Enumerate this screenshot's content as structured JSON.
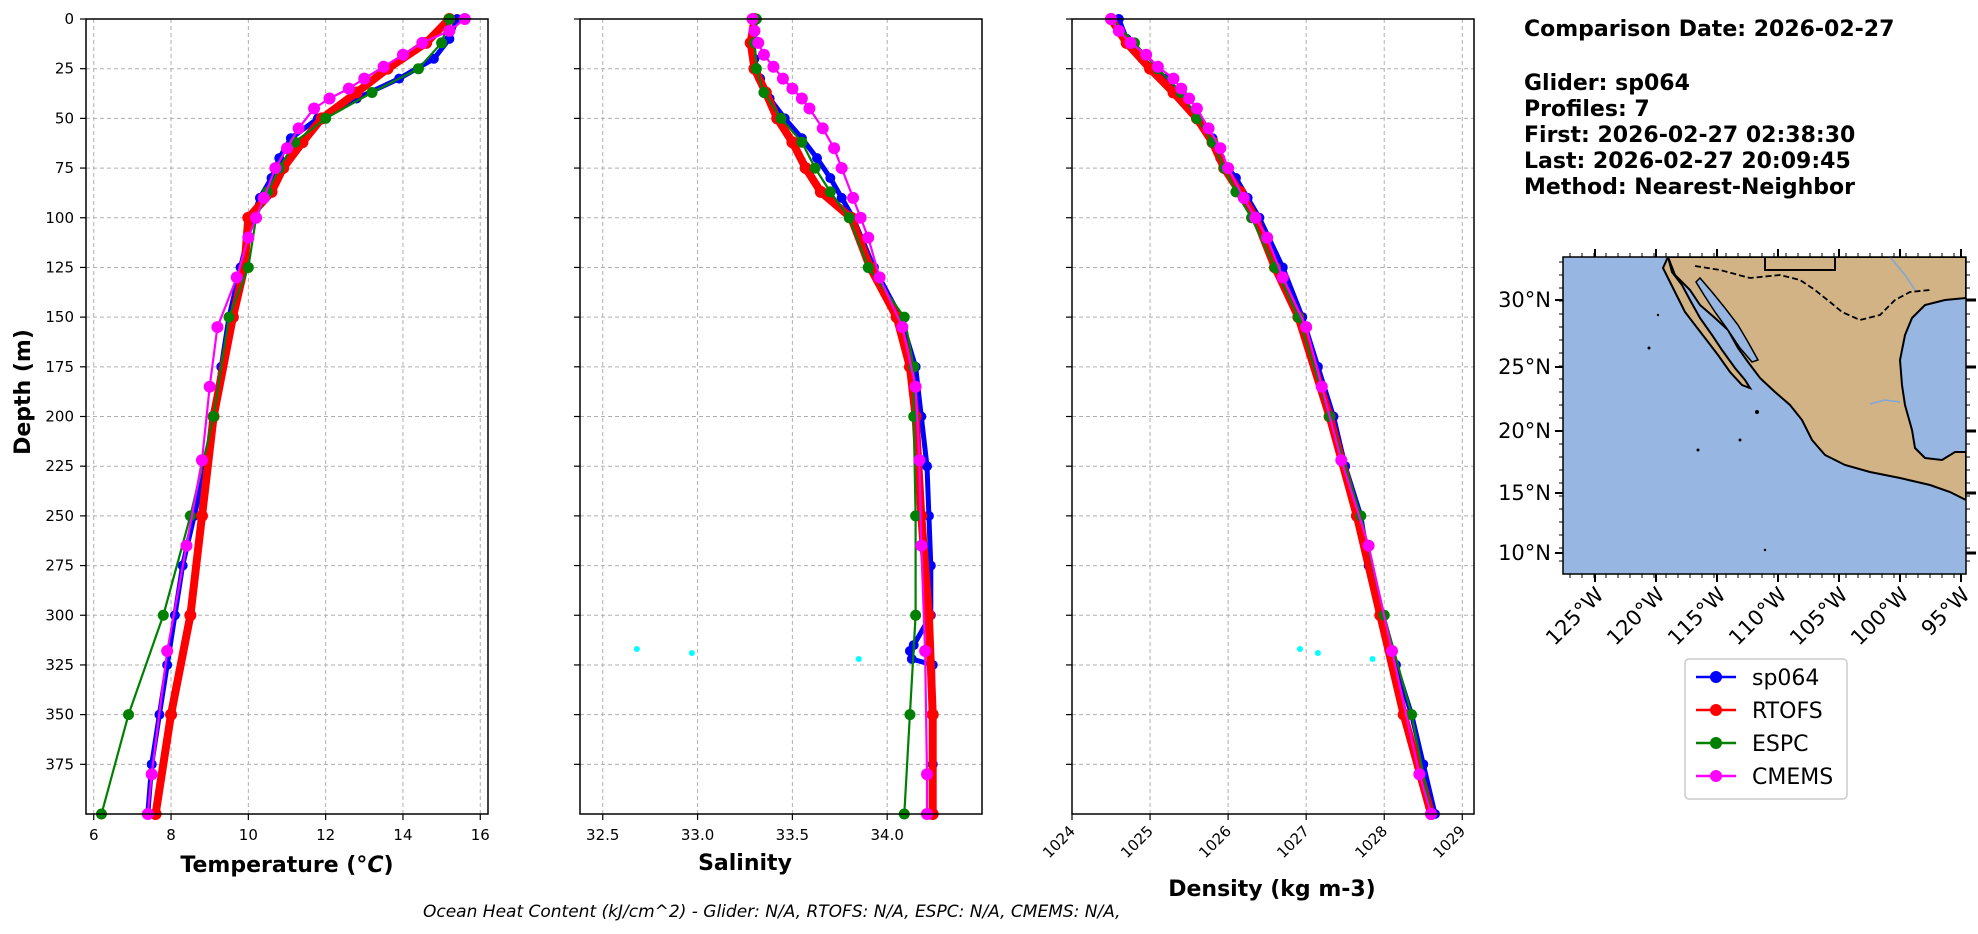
{
  "info": {
    "comparison_date": "Comparison Date: 2026-02-27",
    "glider": "Glider: sp064",
    "profiles": "Profiles: 7",
    "first": "First: 2026-02-27 02:38:30",
    "last": "Last: 2026-02-27 20:09:45",
    "method": "Method: Nearest-Neighbor"
  },
  "footer": "Ocean Heat Content (kJ/cm^2) - Glider: N/A,  RTOFS: N/A,  ESPC: N/A,  CMEMS: N/A,",
  "colors": {
    "sp064": "#0000ff",
    "glider_raw": "#00ffff",
    "RTOFS": "#ff0000",
    "ESPC": "#008000",
    "CMEMS": "#ff00ff",
    "ocean": "#97b6e1",
    "land": "#d1b386"
  },
  "legend": [
    "sp064",
    "RTOFS",
    "ESPC",
    "CMEMS"
  ],
  "map": {
    "lat_labels": [
      "30°N",
      "25°N",
      "20°N",
      "15°N",
      "10°N"
    ],
    "lon_labels": [
      "125°W",
      "120°W",
      "115°W",
      "110°W",
      "105°W",
      "100°W",
      "95°W"
    ]
  },
  "chart_data": [
    {
      "type": "line",
      "xlabel": "Temperature (°C)",
      "ylabel": "Depth (m)",
      "xlim": [
        5.8,
        16.2
      ],
      "ylim": [
        400,
        0
      ],
      "xticks": [
        6,
        8,
        10,
        12,
        14,
        16
      ],
      "yticks": [
        0,
        25,
        50,
        75,
        100,
        125,
        150,
        175,
        200,
        225,
        250,
        275,
        300,
        325,
        350,
        375
      ],
      "grid": true,
      "series": [
        {
          "name": "sp064",
          "depth": [
            0,
            10,
            20,
            30,
            40,
            50,
            60,
            70,
            80,
            90,
            100,
            125,
            150,
            175,
            200,
            225,
            250,
            275,
            300,
            325,
            350,
            375,
            400
          ],
          "values": [
            15.4,
            15.2,
            14.8,
            13.9,
            12.8,
            11.8,
            11.1,
            10.8,
            10.6,
            10.3,
            10.1,
            9.8,
            9.5,
            9.3,
            9.1,
            8.9,
            8.6,
            8.3,
            8.1,
            7.9,
            7.7,
            7.5,
            7.4
          ]
        },
        {
          "name": "RTOFS",
          "depth": [
            0,
            12,
            25,
            37,
            50,
            62,
            75,
            87,
            100,
            125,
            150,
            200,
            250,
            300,
            350,
            400
          ],
          "values": [
            15.2,
            14.6,
            13.6,
            12.8,
            11.9,
            11.4,
            10.9,
            10.6,
            10.0,
            9.9,
            9.6,
            9.1,
            8.8,
            8.5,
            8.0,
            7.6
          ]
        },
        {
          "name": "ESPC",
          "depth": [
            0,
            12,
            25,
            37,
            50,
            62,
            75,
            87,
            100,
            125,
            150,
            200,
            250,
            300,
            350,
            400
          ],
          "values": [
            15.2,
            15.0,
            14.4,
            13.2,
            12.0,
            11.2,
            10.8,
            10.5,
            10.2,
            10.0,
            9.5,
            9.1,
            8.5,
            7.8,
            6.9,
            6.2
          ]
        },
        {
          "name": "CMEMS",
          "depth": [
            0,
            6,
            12,
            18,
            24,
            30,
            35,
            40,
            45,
            55,
            65,
            75,
            90,
            100,
            110,
            130,
            155,
            185,
            222,
            265,
            318,
            380,
            400
          ],
          "values": [
            15.6,
            15.2,
            14.5,
            14.0,
            13.5,
            13.0,
            12.6,
            12.1,
            11.7,
            11.3,
            11.0,
            10.7,
            10.4,
            10.2,
            10.0,
            9.7,
            9.2,
            9.0,
            8.8,
            8.4,
            7.9,
            7.5,
            7.4
          ]
        }
      ]
    },
    {
      "type": "line",
      "xlabel": "Salinity",
      "xlim": [
        32.38,
        34.5
      ],
      "ylim": [
        400,
        0
      ],
      "xticks": [
        "32.5",
        "33.0",
        "33.5",
        "34.0"
      ],
      "grid": true,
      "series": [
        {
          "name": "sp064",
          "depth": [
            0,
            10,
            20,
            30,
            40,
            50,
            60,
            70,
            80,
            90,
            100,
            125,
            150,
            175,
            200,
            225,
            250,
            275,
            300,
            315,
            318,
            322,
            325,
            350,
            375,
            400
          ],
          "values": [
            33.3,
            33.29,
            33.3,
            33.33,
            33.38,
            33.46,
            33.55,
            33.63,
            33.7,
            33.76,
            33.82,
            33.93,
            34.07,
            34.15,
            34.18,
            34.21,
            34.22,
            34.23,
            34.23,
            34.14,
            34.12,
            34.13,
            34.24,
            34.24,
            34.24,
            34.24
          ]
        },
        {
          "name": "RTOFS",
          "depth": [
            0,
            12,
            25,
            37,
            50,
            62,
            75,
            87,
            100,
            125,
            150,
            175,
            200,
            250,
            300,
            350,
            400
          ],
          "values": [
            33.3,
            33.28,
            33.3,
            33.36,
            33.42,
            33.5,
            33.57,
            33.65,
            33.81,
            33.91,
            34.05,
            34.12,
            34.15,
            34.18,
            34.22,
            34.24,
            34.24
          ]
        },
        {
          "name": "ESPC",
          "depth": [
            0,
            12,
            25,
            37,
            50,
            62,
            75,
            87,
            100,
            125,
            150,
            175,
            200,
            250,
            300,
            350,
            400
          ],
          "values": [
            33.31,
            33.3,
            33.31,
            33.35,
            33.44,
            33.55,
            33.62,
            33.7,
            33.8,
            33.9,
            34.09,
            34.14,
            34.14,
            34.15,
            34.15,
            34.12,
            34.09
          ]
        },
        {
          "name": "CMEMS",
          "depth": [
            0,
            6,
            12,
            18,
            24,
            30,
            35,
            40,
            45,
            55,
            65,
            75,
            90,
            100,
            110,
            130,
            155,
            185,
            222,
            265,
            318,
            380,
            400
          ],
          "values": [
            33.29,
            33.3,
            33.32,
            33.35,
            33.4,
            33.45,
            33.5,
            33.55,
            33.59,
            33.66,
            33.72,
            33.76,
            33.82,
            33.86,
            33.9,
            33.96,
            34.08,
            34.15,
            34.17,
            34.18,
            34.2,
            34.21,
            34.21
          ]
        },
        {
          "name": "glider_raw",
          "depth": [
            317,
            319,
            322
          ],
          "values": [
            32.68,
            32.97,
            33.85
          ]
        }
      ]
    },
    {
      "type": "line",
      "xlabel": "Density (kg m-3)",
      "xlim": [
        1024,
        1029.15
      ],
      "ylim": [
        400,
        0
      ],
      "xticks": [
        "1024",
        "1025",
        "1026",
        "1027",
        "1028",
        "1029"
      ],
      "grid": true,
      "series": [
        {
          "name": "sp064",
          "depth": [
            0,
            10,
            20,
            30,
            40,
            50,
            60,
            70,
            80,
            90,
            100,
            125,
            150,
            175,
            200,
            225,
            250,
            275,
            300,
            325,
            350,
            375,
            400
          ],
          "values": [
            1024.6,
            1024.7,
            1024.9,
            1025.2,
            1025.4,
            1025.6,
            1025.8,
            1025.9,
            1026.1,
            1026.25,
            1026.4,
            1026.7,
            1026.95,
            1027.15,
            1027.35,
            1027.5,
            1027.7,
            1027.8,
            1027.95,
            1028.15,
            1028.35,
            1028.5,
            1028.65
          ]
        },
        {
          "name": "RTOFS",
          "depth": [
            0,
            12,
            25,
            37,
            50,
            62,
            75,
            87,
            100,
            125,
            150,
            200,
            250,
            300,
            350,
            400
          ],
          "values": [
            1024.5,
            1024.7,
            1025.0,
            1025.3,
            1025.6,
            1025.8,
            1025.95,
            1026.15,
            1026.35,
            1026.6,
            1026.9,
            1027.3,
            1027.65,
            1027.95,
            1028.25,
            1028.6
          ]
        },
        {
          "name": "ESPC",
          "depth": [
            0,
            12,
            25,
            37,
            50,
            62,
            75,
            87,
            100,
            125,
            150,
            200,
            250,
            300,
            350,
            400
          ],
          "values": [
            1024.5,
            1024.8,
            1025.1,
            1025.4,
            1025.6,
            1025.8,
            1025.95,
            1026.1,
            1026.3,
            1026.6,
            1026.9,
            1027.3,
            1027.7,
            1028.0,
            1028.35,
            1028.6
          ]
        },
        {
          "name": "CMEMS",
          "depth": [
            0,
            6,
            12,
            18,
            24,
            30,
            35,
            40,
            45,
            55,
            65,
            75,
            90,
            100,
            110,
            130,
            155,
            185,
            222,
            265,
            318,
            380,
            400
          ],
          "values": [
            1024.5,
            1024.6,
            1024.75,
            1024.95,
            1025.1,
            1025.3,
            1025.4,
            1025.5,
            1025.6,
            1025.75,
            1025.9,
            1026.0,
            1026.2,
            1026.35,
            1026.5,
            1026.7,
            1027.0,
            1027.2,
            1027.45,
            1027.8,
            1028.1,
            1028.45,
            1028.6
          ]
        },
        {
          "name": "glider_raw",
          "depth": [
            317,
            319,
            322
          ],
          "values": [
            1026.92,
            1027.15,
            1027.85
          ]
        }
      ]
    }
  ]
}
